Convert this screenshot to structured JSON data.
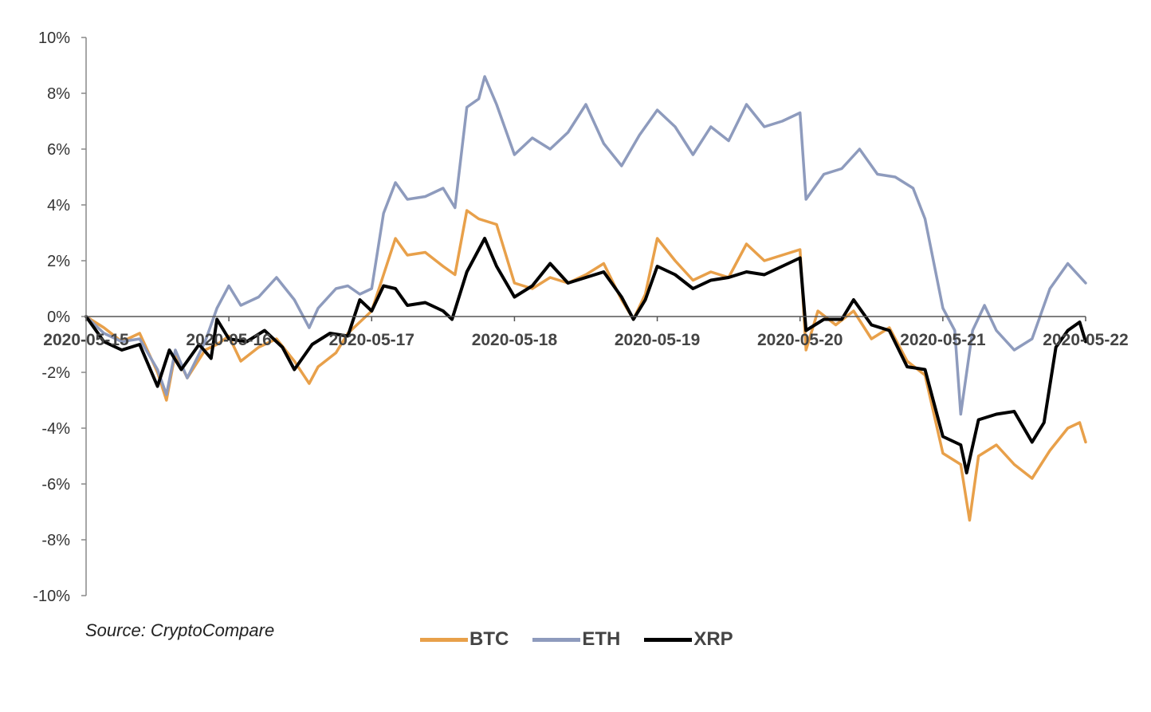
{
  "source": "Source: CryptoCompare",
  "colors": {
    "axis": "#888888",
    "zero": "#555555"
  },
  "chart_data": {
    "type": "line",
    "title": "",
    "xlabel": "",
    "ylabel": "",
    "ylim": [
      -10,
      10
    ],
    "y_ticks": [
      {
        "value": 10,
        "label": "10%"
      },
      {
        "value": 8,
        "label": "8%"
      },
      {
        "value": 6,
        "label": "6%"
      },
      {
        "value": 4,
        "label": "4%"
      },
      {
        "value": 2,
        "label": "2%"
      },
      {
        "value": 0,
        "label": "0%"
      },
      {
        "value": -2,
        "label": "-2%"
      },
      {
        "value": -4,
        "label": "-4%"
      },
      {
        "value": -6,
        "label": "-6%"
      },
      {
        "value": -8,
        "label": "-8%"
      },
      {
        "value": -10,
        "label": "-10%"
      }
    ],
    "x_ticks": [
      "2020-05-15",
      "2020-05-16",
      "2020-05-17",
      "2020-05-18",
      "2020-05-19",
      "2020-05-20",
      "2020-05-21",
      "2020-05-22"
    ],
    "xlim": [
      "2020-05-15 00:00",
      "2020-05-22 00:00"
    ],
    "legend_position": "bottom",
    "series": [
      {
        "name": "BTC",
        "color": "#E8A04A",
        "points": [
          [
            "2020-05-15 00:00",
            0.0
          ],
          [
            "2020-05-15 03:00",
            -0.4
          ],
          [
            "2020-05-15 06:00",
            -0.9
          ],
          [
            "2020-05-15 09:00",
            -0.6
          ],
          [
            "2020-05-15 12:00",
            -2.0
          ],
          [
            "2020-05-15 13:30",
            -3.0
          ],
          [
            "2020-05-15 15:00",
            -1.3
          ],
          [
            "2020-05-15 17:00",
            -2.2
          ],
          [
            "2020-05-15 20:00",
            -1.2
          ],
          [
            "2020-05-15 22:00",
            -1.0
          ],
          [
            "2020-05-16 00:00",
            -0.7
          ],
          [
            "2020-05-16 02:00",
            -1.6
          ],
          [
            "2020-05-16 05:00",
            -1.1
          ],
          [
            "2020-05-16 08:00",
            -0.8
          ],
          [
            "2020-05-16 11:00",
            -1.6
          ],
          [
            "2020-05-16 13:30",
            -2.4
          ],
          [
            "2020-05-16 15:00",
            -1.8
          ],
          [
            "2020-05-16 18:00",
            -1.3
          ],
          [
            "2020-05-16 20:00",
            -0.6
          ],
          [
            "2020-05-16 22:00",
            -0.2
          ],
          [
            "2020-05-17 00:00",
            0.2
          ],
          [
            "2020-05-17 02:00",
            1.5
          ],
          [
            "2020-05-17 04:00",
            2.8
          ],
          [
            "2020-05-17 06:00",
            2.2
          ],
          [
            "2020-05-17 09:00",
            2.3
          ],
          [
            "2020-05-17 12:00",
            1.8
          ],
          [
            "2020-05-17 14:00",
            1.5
          ],
          [
            "2020-05-17 16:00",
            3.8
          ],
          [
            "2020-05-17 18:00",
            3.5
          ],
          [
            "2020-05-17 21:00",
            3.3
          ],
          [
            "2020-05-18 00:00",
            1.2
          ],
          [
            "2020-05-18 03:00",
            1.0
          ],
          [
            "2020-05-18 06:00",
            1.4
          ],
          [
            "2020-05-18 09:00",
            1.2
          ],
          [
            "2020-05-18 12:00",
            1.5
          ],
          [
            "2020-05-18 15:00",
            1.9
          ],
          [
            "2020-05-18 18:00",
            0.6
          ],
          [
            "2020-05-18 20:00",
            -0.1
          ],
          [
            "2020-05-18 22:00",
            0.8
          ],
          [
            "2020-05-19 00:00",
            2.8
          ],
          [
            "2020-05-19 03:00",
            2.0
          ],
          [
            "2020-05-19 06:00",
            1.3
          ],
          [
            "2020-05-19 09:00",
            1.6
          ],
          [
            "2020-05-19 12:00",
            1.4
          ],
          [
            "2020-05-19 15:00",
            2.6
          ],
          [
            "2020-05-19 18:00",
            2.0
          ],
          [
            "2020-05-19 21:00",
            2.2
          ],
          [
            "2020-05-20 00:00",
            2.4
          ],
          [
            "2020-05-20 01:00",
            -1.2
          ],
          [
            "2020-05-20 03:00",
            0.2
          ],
          [
            "2020-05-20 06:00",
            -0.3
          ],
          [
            "2020-05-20 09:00",
            0.2
          ],
          [
            "2020-05-20 12:00",
            -0.8
          ],
          [
            "2020-05-20 15:00",
            -0.4
          ],
          [
            "2020-05-20 18:00",
            -1.6
          ],
          [
            "2020-05-20 21:00",
            -2.1
          ],
          [
            "2020-05-21 00:00",
            -4.9
          ],
          [
            "2020-05-21 03:00",
            -5.3
          ],
          [
            "2020-05-21 04:30",
            -7.3
          ],
          [
            "2020-05-21 06:00",
            -5.0
          ],
          [
            "2020-05-21 09:00",
            -4.6
          ],
          [
            "2020-05-21 12:00",
            -5.3
          ],
          [
            "2020-05-21 15:00",
            -5.8
          ],
          [
            "2020-05-21 18:00",
            -4.8
          ],
          [
            "2020-05-21 21:00",
            -4.0
          ],
          [
            "2020-05-21 23:00",
            -3.8
          ],
          [
            "2020-05-22 00:00",
            -4.5
          ]
        ]
      },
      {
        "name": "ETH",
        "color": "#8E9BBD",
        "points": [
          [
            "2020-05-15 00:00",
            0.0
          ],
          [
            "2020-05-15 03:00",
            -0.6
          ],
          [
            "2020-05-15 06:00",
            -0.9
          ],
          [
            "2020-05-15 09:00",
            -0.8
          ],
          [
            "2020-05-15 12:00",
            -1.9
          ],
          [
            "2020-05-15 13:30",
            -2.8
          ],
          [
            "2020-05-15 15:00",
            -1.2
          ],
          [
            "2020-05-15 17:00",
            -2.2
          ],
          [
            "2020-05-15 20:00",
            -0.9
          ],
          [
            "2020-05-15 22:00",
            0.3
          ],
          [
            "2020-05-16 00:00",
            1.1
          ],
          [
            "2020-05-16 02:00",
            0.4
          ],
          [
            "2020-05-16 05:00",
            0.7
          ],
          [
            "2020-05-16 08:00",
            1.4
          ],
          [
            "2020-05-16 11:00",
            0.6
          ],
          [
            "2020-05-16 13:30",
            -0.4
          ],
          [
            "2020-05-16 15:00",
            0.3
          ],
          [
            "2020-05-16 18:00",
            1.0
          ],
          [
            "2020-05-16 20:00",
            1.1
          ],
          [
            "2020-05-16 22:00",
            0.8
          ],
          [
            "2020-05-17 00:00",
            1.0
          ],
          [
            "2020-05-17 02:00",
            3.7
          ],
          [
            "2020-05-17 04:00",
            4.8
          ],
          [
            "2020-05-17 06:00",
            4.2
          ],
          [
            "2020-05-17 09:00",
            4.3
          ],
          [
            "2020-05-17 12:00",
            4.6
          ],
          [
            "2020-05-17 14:00",
            3.9
          ],
          [
            "2020-05-17 16:00",
            7.5
          ],
          [
            "2020-05-17 18:00",
            7.8
          ],
          [
            "2020-05-17 19:00",
            8.6
          ],
          [
            "2020-05-17 21:00",
            7.6
          ],
          [
            "2020-05-18 00:00",
            5.8
          ],
          [
            "2020-05-18 03:00",
            6.4
          ],
          [
            "2020-05-18 06:00",
            6.0
          ],
          [
            "2020-05-18 09:00",
            6.6
          ],
          [
            "2020-05-18 12:00",
            7.6
          ],
          [
            "2020-05-18 15:00",
            6.2
          ],
          [
            "2020-05-18 18:00",
            5.4
          ],
          [
            "2020-05-18 21:00",
            6.5
          ],
          [
            "2020-05-19 00:00",
            7.4
          ],
          [
            "2020-05-19 03:00",
            6.8
          ],
          [
            "2020-05-19 06:00",
            5.8
          ],
          [
            "2020-05-19 09:00",
            6.8
          ],
          [
            "2020-05-19 12:00",
            6.3
          ],
          [
            "2020-05-19 15:00",
            7.6
          ],
          [
            "2020-05-19 18:00",
            6.8
          ],
          [
            "2020-05-19 21:00",
            7.0
          ],
          [
            "2020-05-20 00:00",
            7.3
          ],
          [
            "2020-05-20 01:00",
            4.2
          ],
          [
            "2020-05-20 04:00",
            5.1
          ],
          [
            "2020-05-20 07:00",
            5.3
          ],
          [
            "2020-05-20 10:00",
            6.0
          ],
          [
            "2020-05-20 13:00",
            5.1
          ],
          [
            "2020-05-20 16:00",
            5.0
          ],
          [
            "2020-05-20 19:00",
            4.6
          ],
          [
            "2020-05-20 21:00",
            3.5
          ],
          [
            "2020-05-21 00:00",
            0.3
          ],
          [
            "2020-05-21 02:00",
            -0.5
          ],
          [
            "2020-05-21 03:00",
            -3.5
          ],
          [
            "2020-05-21 05:00",
            -0.5
          ],
          [
            "2020-05-21 07:00",
            0.4
          ],
          [
            "2020-05-21 09:00",
            -0.5
          ],
          [
            "2020-05-21 12:00",
            -1.2
          ],
          [
            "2020-05-21 15:00",
            -0.8
          ],
          [
            "2020-05-21 18:00",
            1.0
          ],
          [
            "2020-05-21 21:00",
            1.9
          ],
          [
            "2020-05-22 00:00",
            1.2
          ]
        ]
      },
      {
        "name": "XRP",
        "color": "#000000",
        "points": [
          [
            "2020-05-15 00:00",
            0.0
          ],
          [
            "2020-05-15 03:00",
            -0.9
          ],
          [
            "2020-05-15 06:00",
            -1.2
          ],
          [
            "2020-05-15 09:00",
            -1.0
          ],
          [
            "2020-05-15 12:00",
            -2.5
          ],
          [
            "2020-05-15 14:00",
            -1.2
          ],
          [
            "2020-05-15 16:00",
            -1.9
          ],
          [
            "2020-05-15 19:00",
            -1.0
          ],
          [
            "2020-05-15 21:00",
            -1.5
          ],
          [
            "2020-05-15 22:00",
            -0.1
          ],
          [
            "2020-05-16 00:00",
            -0.8
          ],
          [
            "2020-05-16 03:00",
            -0.9
          ],
          [
            "2020-05-16 06:00",
            -0.5
          ],
          [
            "2020-05-16 09:00",
            -1.1
          ],
          [
            "2020-05-16 11:00",
            -1.9
          ],
          [
            "2020-05-16 14:00",
            -1.0
          ],
          [
            "2020-05-16 17:00",
            -0.6
          ],
          [
            "2020-05-16 20:00",
            -0.7
          ],
          [
            "2020-05-16 22:00",
            0.6
          ],
          [
            "2020-05-17 00:00",
            0.2
          ],
          [
            "2020-05-17 02:00",
            1.1
          ],
          [
            "2020-05-17 04:00",
            1.0
          ],
          [
            "2020-05-17 06:00",
            0.4
          ],
          [
            "2020-05-17 09:00",
            0.5
          ],
          [
            "2020-05-17 12:00",
            0.2
          ],
          [
            "2020-05-17 13:30",
            -0.1
          ],
          [
            "2020-05-17 16:00",
            1.6
          ],
          [
            "2020-05-17 19:00",
            2.8
          ],
          [
            "2020-05-17 21:00",
            1.8
          ],
          [
            "2020-05-18 00:00",
            0.7
          ],
          [
            "2020-05-18 03:00",
            1.1
          ],
          [
            "2020-05-18 06:00",
            1.9
          ],
          [
            "2020-05-18 09:00",
            1.2
          ],
          [
            "2020-05-18 12:00",
            1.4
          ],
          [
            "2020-05-18 15:00",
            1.6
          ],
          [
            "2020-05-18 18:00",
            0.7
          ],
          [
            "2020-05-18 20:00",
            -0.1
          ],
          [
            "2020-05-18 22:00",
            0.6
          ],
          [
            "2020-05-19 00:00",
            1.8
          ],
          [
            "2020-05-19 03:00",
            1.5
          ],
          [
            "2020-05-19 06:00",
            1.0
          ],
          [
            "2020-05-19 09:00",
            1.3
          ],
          [
            "2020-05-19 12:00",
            1.4
          ],
          [
            "2020-05-19 15:00",
            1.6
          ],
          [
            "2020-05-19 18:00",
            1.5
          ],
          [
            "2020-05-19 21:00",
            1.8
          ],
          [
            "2020-05-20 00:00",
            2.1
          ],
          [
            "2020-05-20 01:00",
            -0.5
          ],
          [
            "2020-05-20 04:00",
            -0.1
          ],
          [
            "2020-05-20 07:00",
            -0.1
          ],
          [
            "2020-05-20 09:00",
            0.6
          ],
          [
            "2020-05-20 12:00",
            -0.3
          ],
          [
            "2020-05-20 15:00",
            -0.5
          ],
          [
            "2020-05-20 18:00",
            -1.8
          ],
          [
            "2020-05-20 21:00",
            -1.9
          ],
          [
            "2020-05-21 00:00",
            -4.3
          ],
          [
            "2020-05-21 03:00",
            -4.6
          ],
          [
            "2020-05-21 04:00",
            -5.6
          ],
          [
            "2020-05-21 06:00",
            -3.7
          ],
          [
            "2020-05-21 09:00",
            -3.5
          ],
          [
            "2020-05-21 12:00",
            -3.4
          ],
          [
            "2020-05-21 15:00",
            -4.5
          ],
          [
            "2020-05-21 17:00",
            -3.8
          ],
          [
            "2020-05-21 19:00",
            -1.1
          ],
          [
            "2020-05-21 21:00",
            -0.5
          ],
          [
            "2020-05-21 23:00",
            -0.2
          ],
          [
            "2020-05-22 00:00",
            -0.9
          ]
        ]
      }
    ]
  }
}
